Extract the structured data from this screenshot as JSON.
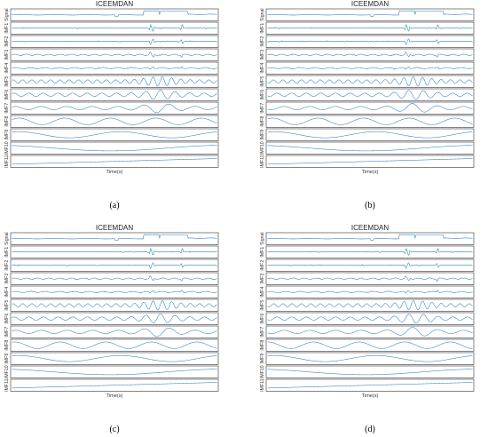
{
  "figure": {
    "accent": "#2f7fc0"
  },
  "chart_data": [
    {
      "type": "line",
      "title": "ICEEMDAN",
      "caption": "(a)",
      "xlabel": "Time(s)",
      "rows": [
        "Signal",
        "IMF1",
        "IMF2",
        "IMF3",
        "IMF4",
        "IMF5",
        "IMF6",
        "IMF7",
        "IMF8",
        "IMF9",
        "IMF10",
        "IMF11"
      ]
    },
    {
      "type": "line",
      "title": "ICEEMDAN",
      "caption": "(b)",
      "xlabel": "Time(s)",
      "rows": [
        "Signal",
        "IMF1",
        "IMF2",
        "IMF3",
        "IMF4",
        "IMF5",
        "IMF6",
        "IMF7",
        "IMF8",
        "IMF9",
        "IMF10",
        "IMF11"
      ]
    },
    {
      "type": "line",
      "title": "ICEEMDAN",
      "caption": "(c)",
      "xlabel": "Time(s)",
      "rows": [
        "Signal",
        "IMF1",
        "IMF2",
        "IMF3",
        "IMF4",
        "IMF5",
        "IMF6",
        "IMF7",
        "IMF8",
        "IMF9",
        "IMF10",
        "IMF11"
      ]
    },
    {
      "type": "line",
      "title": "ICEEMDAN",
      "caption": "(d)",
      "xlabel": "Time(s)",
      "rows": [
        "Signal",
        "IMF1",
        "IMF2",
        "IMF3",
        "IMF4",
        "IMF5",
        "IMF6",
        "IMF7",
        "IMF8",
        "IMF9",
        "IMF10",
        "IMF11"
      ]
    }
  ]
}
